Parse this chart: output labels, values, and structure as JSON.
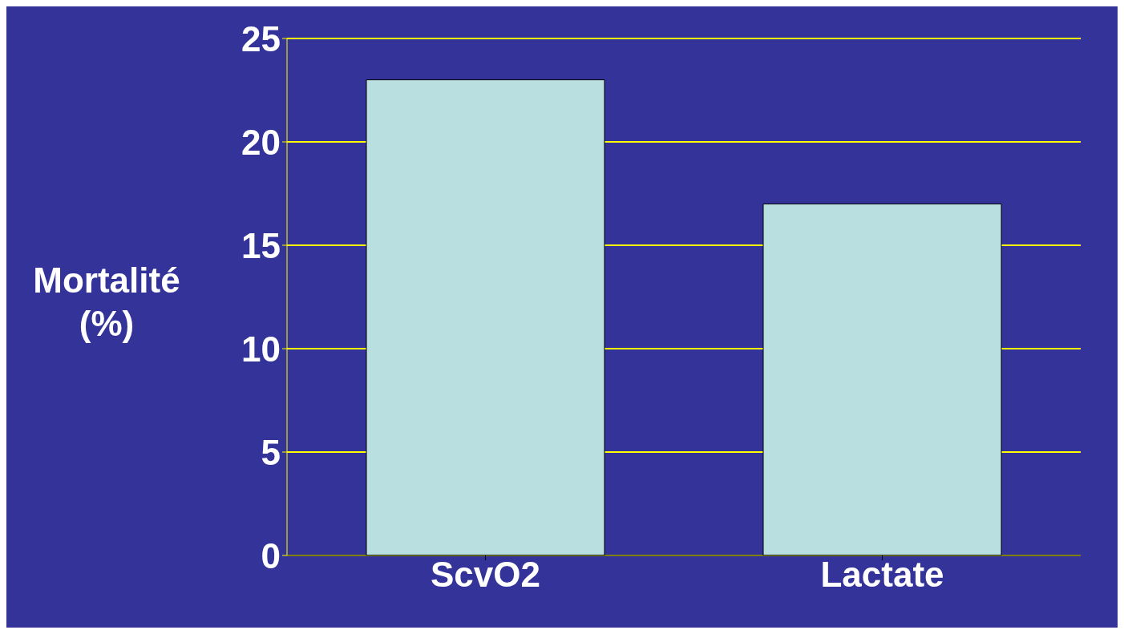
{
  "chart_data": {
    "type": "bar",
    "ylabel": "Mortalité (%)",
    "categories": [
      "ScvO2",
      "Lactate"
    ],
    "values": [
      23,
      17
    ],
    "color": "#b9dfe1",
    "ylim": [
      0,
      25
    ],
    "yticks": [
      0,
      5,
      10,
      15,
      20,
      25
    ],
    "grid": "y"
  }
}
